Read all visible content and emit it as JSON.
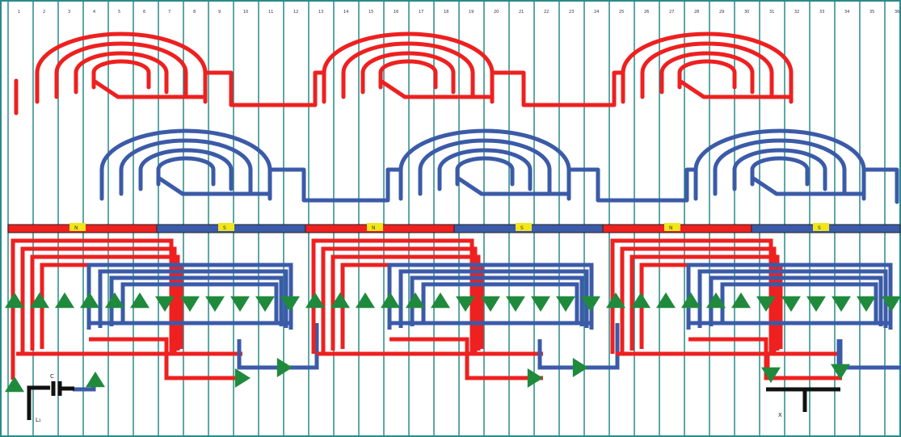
{
  "colors": {
    "background": "#ffffff",
    "slot_line": "#2a8a8a",
    "phase_a": "#ee2020",
    "phase_b": "#3b5ba8",
    "arrow": "#1f8a3c",
    "pole_label_bg": "#f2e61a",
    "terminal": "#111111"
  },
  "slot_numbers": [
    "1",
    "2",
    "3",
    "4",
    "5",
    "6",
    "7",
    "8",
    "9",
    "10",
    "11",
    "12",
    "13",
    "14",
    "15",
    "16",
    "17",
    "18",
    "19",
    "20",
    "21",
    "22",
    "23",
    "24",
    "25",
    "26",
    "27",
    "28",
    "29",
    "30",
    "31",
    "32",
    "33",
    "34",
    "35",
    "36"
  ],
  "pole_labels": [
    "N",
    "S",
    "N",
    "S",
    "N",
    "S"
  ],
  "terminals": {
    "capacitor_label": "C",
    "left_label": "L₁",
    "right_label": "X"
  },
  "diagram": {
    "slot_count": 36,
    "pole_count": 6,
    "arrow_directions": [
      "up",
      "up",
      "up",
      "up",
      "up",
      "up",
      "down",
      "down",
      "down",
      "down",
      "down",
      "down",
      "up",
      "up",
      "up",
      "up",
      "up",
      "up",
      "down",
      "down",
      "down",
      "down",
      "down",
      "down",
      "up",
      "up",
      "up",
      "up",
      "up",
      "up",
      "down",
      "down",
      "down",
      "down",
      "down",
      "down"
    ]
  }
}
